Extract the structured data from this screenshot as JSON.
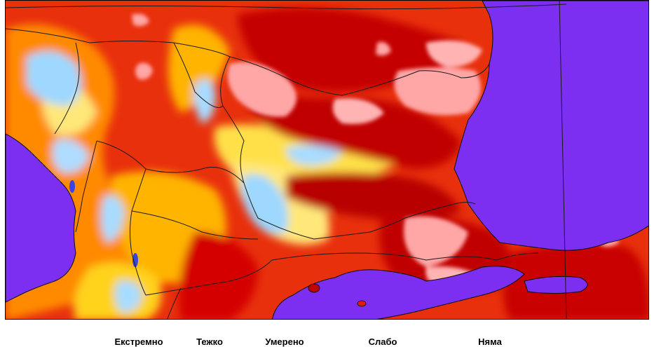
{
  "legend": {
    "items": [
      {
        "label": "Екстремно",
        "color": "#8a0000"
      },
      {
        "label": "Тежко",
        "color": "#e21c0c"
      },
      {
        "label": "Умерено",
        "color": "#ff9a00"
      },
      {
        "label": "Слабо",
        "color": "#ffe77a"
      },
      {
        "label": "Няма",
        "color": "#8fd4ff"
      }
    ]
  },
  "colors": {
    "sea": "#7c2ff0",
    "border": "#1a1a1a",
    "pink": "#ffa6a6",
    "darkred": "#c00000",
    "red": "#e21c0c",
    "orange": "#ff7a00",
    "yellow": "#ffd21a",
    "paleyellow": "#fff3a0",
    "lightblue": "#9ed8ff",
    "blue": "#5ab4ff"
  }
}
